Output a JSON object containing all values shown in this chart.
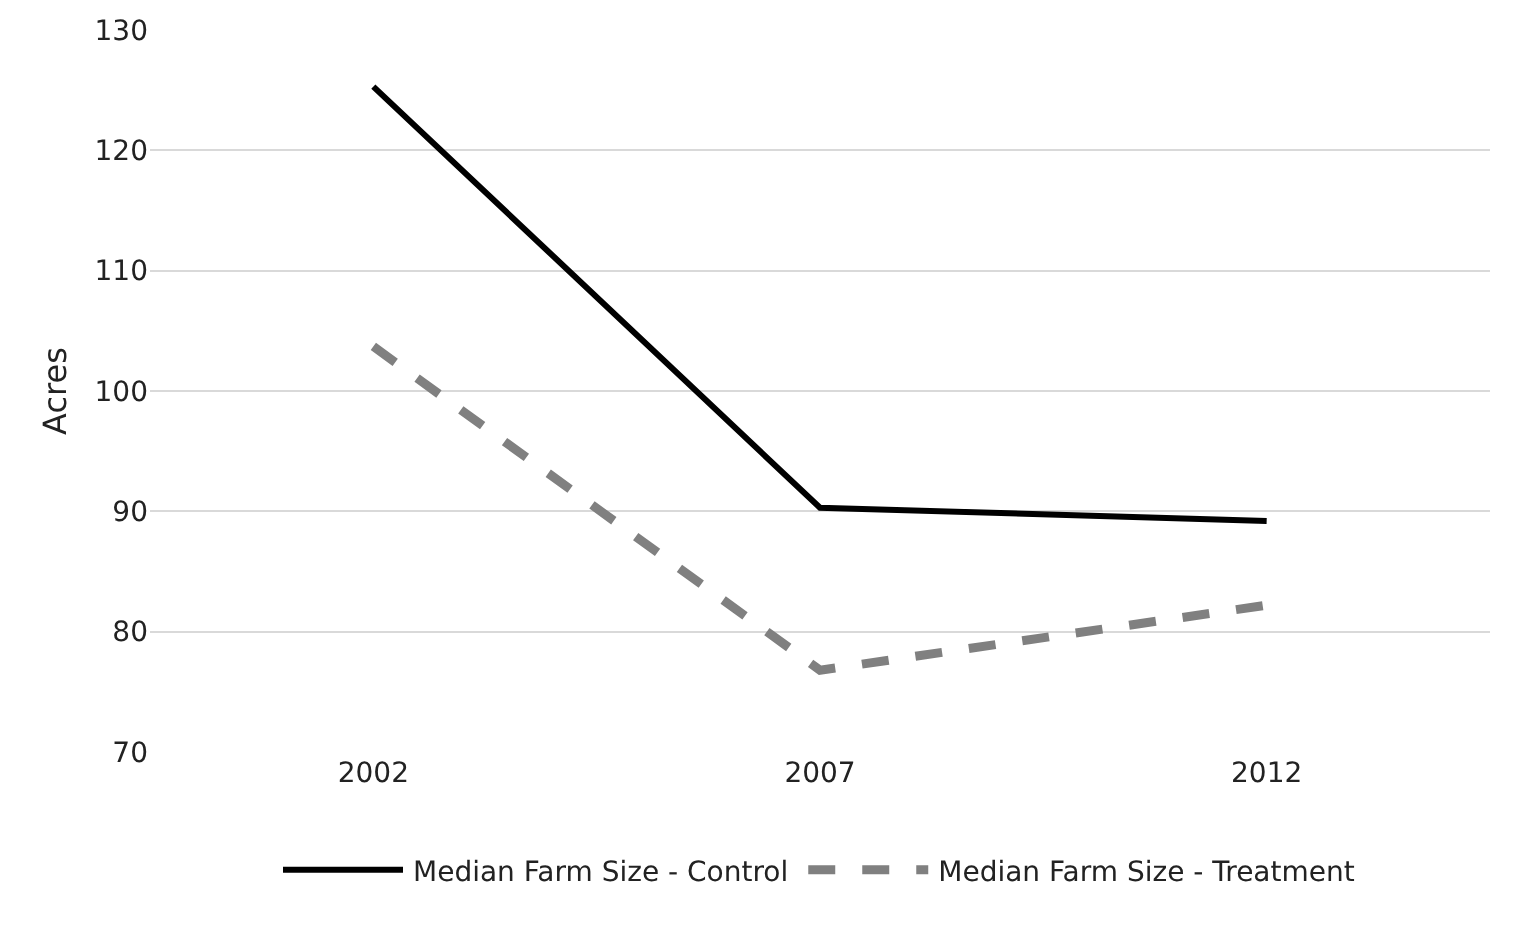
{
  "chart_data": {
    "type": "line",
    "ylabel": "Acres",
    "categories": [
      "2002",
      "2007",
      "2012"
    ],
    "series": [
      {
        "name": "Median Farm Size - Control",
        "color": "#000000",
        "values": [
          125.3,
          90.3,
          89.2
        ],
        "line_style": "solid"
      },
      {
        "name": "Median Farm Size - Treatment",
        "color": "#808080",
        "values": [
          103.7,
          76.8,
          82.2
        ],
        "line_style": "dashed"
      }
    ],
    "ylim": [
      70,
      130
    ],
    "yticks": [
      70,
      80,
      90,
      100,
      110,
      120,
      130
    ],
    "grid": "y",
    "legend": "bottom",
    "marker": "none"
  }
}
